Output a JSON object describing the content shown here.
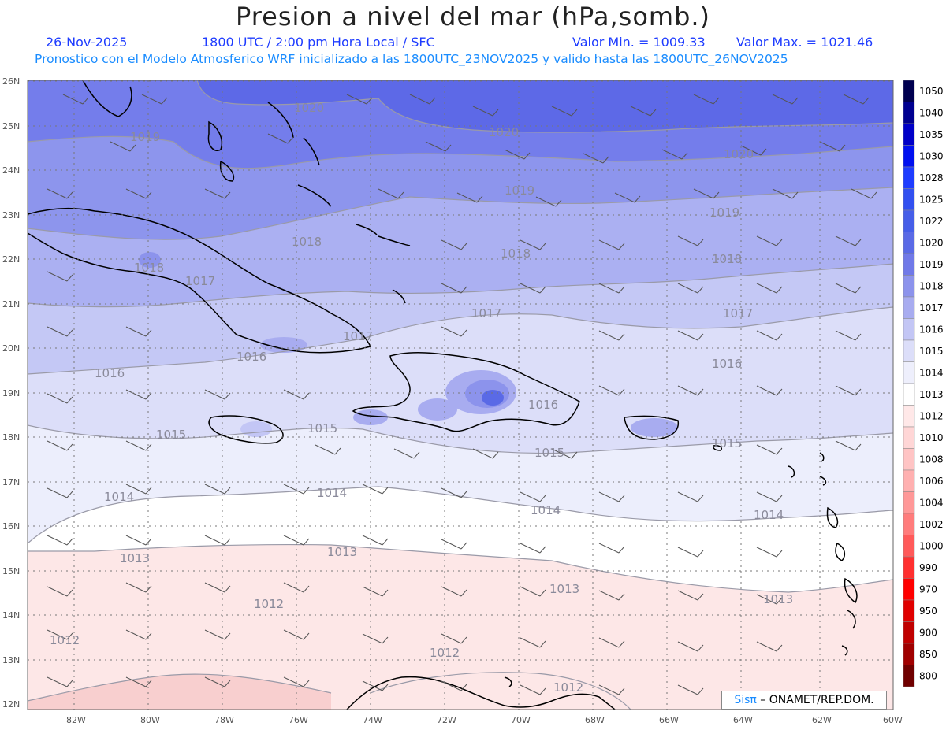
{
  "title": "Presion a nivel del mar (hPa,somb.)",
  "date": "26-Nov-2025",
  "time_info": "1800 UTC / 2:00 pm Hora Local / SFC",
  "min_value": "Valor Min. = 1009.33",
  "max_value": "Valor Max. = 1021.46",
  "forecast_info": "Pronostico con el Modelo Atmosferico WRF inicializado a las 1800UTC_23NOV2025 y valido hasta las  1800UTC_26NOV2025",
  "credit_brand": "Sisπ",
  "credit_org": " – ONAMET/REP.DOM.",
  "lat_labels": [
    "26N",
    "25N",
    "24N",
    "23N",
    "22N",
    "21N",
    "20N",
    "19N",
    "18N",
    "17N",
    "16N",
    "15N",
    "14N",
    "13N",
    "12N"
  ],
  "lon_labels": [
    "82W",
    "80W",
    "78W",
    "76W",
    "74W",
    "72W",
    "70W",
    "68W",
    "66W",
    "64W",
    "62W",
    "60W"
  ],
  "colorbar_labels": [
    "1050",
    "1040",
    "1035",
    "1030",
    "1028",
    "1025",
    "1022",
    "1020",
    "1019",
    "1018",
    "1017",
    "1016",
    "1015",
    "1014",
    "1013",
    "1012",
    "1010",
    "1008",
    "1006",
    "1004",
    "1002",
    "1000",
    "990",
    "970",
    "950",
    "900",
    "850",
    "800"
  ],
  "colorbar_colors": [
    "#000050",
    "#000090",
    "#0000c8",
    "#0010f0",
    "#1e3cff",
    "#3250f0",
    "#465ee8",
    "#5a6ae6",
    "#7079e8",
    "#8c93ec",
    "#a8acf0",
    "#c3c6f5",
    "#dcdef9",
    "#eeeffc",
    "#ffffff",
    "#ffe8e8",
    "#ffd6d6",
    "#ffc4c4",
    "#ffb0b0",
    "#ff9898",
    "#ff7c7c",
    "#ff5a5a",
    "#ff3030",
    "#ff0000",
    "#e00000",
    "#c00000",
    "#a00000",
    "#700000"
  ],
  "isobar_labels": [
    {
      "text": "1020"
    },
    {
      "text": "1020"
    },
    {
      "text": "1020"
    },
    {
      "text": "1019"
    },
    {
      "text": "1019"
    },
    {
      "text": "1019"
    },
    {
      "text": "1018"
    },
    {
      "text": "1018"
    },
    {
      "text": "1018"
    },
    {
      "text": "1018"
    },
    {
      "text": "1017"
    },
    {
      "text": "1017"
    },
    {
      "text": "1017"
    },
    {
      "text": "1017"
    },
    {
      "text": "1016"
    },
    {
      "text": "1016"
    },
    {
      "text": "1016"
    },
    {
      "text": "1016"
    },
    {
      "text": "1015"
    },
    {
      "text": "1015"
    },
    {
      "text": "1015"
    },
    {
      "text": "1015"
    },
    {
      "text": "1014"
    },
    {
      "text": "1014"
    },
    {
      "text": "1014"
    },
    {
      "text": "1014"
    },
    {
      "text": "1013"
    },
    {
      "text": "1013"
    },
    {
      "text": "1013"
    },
    {
      "text": "1013"
    },
    {
      "text": "1012"
    },
    {
      "text": "1012"
    },
    {
      "text": "1012"
    },
    {
      "text": "1012"
    }
  ]
}
